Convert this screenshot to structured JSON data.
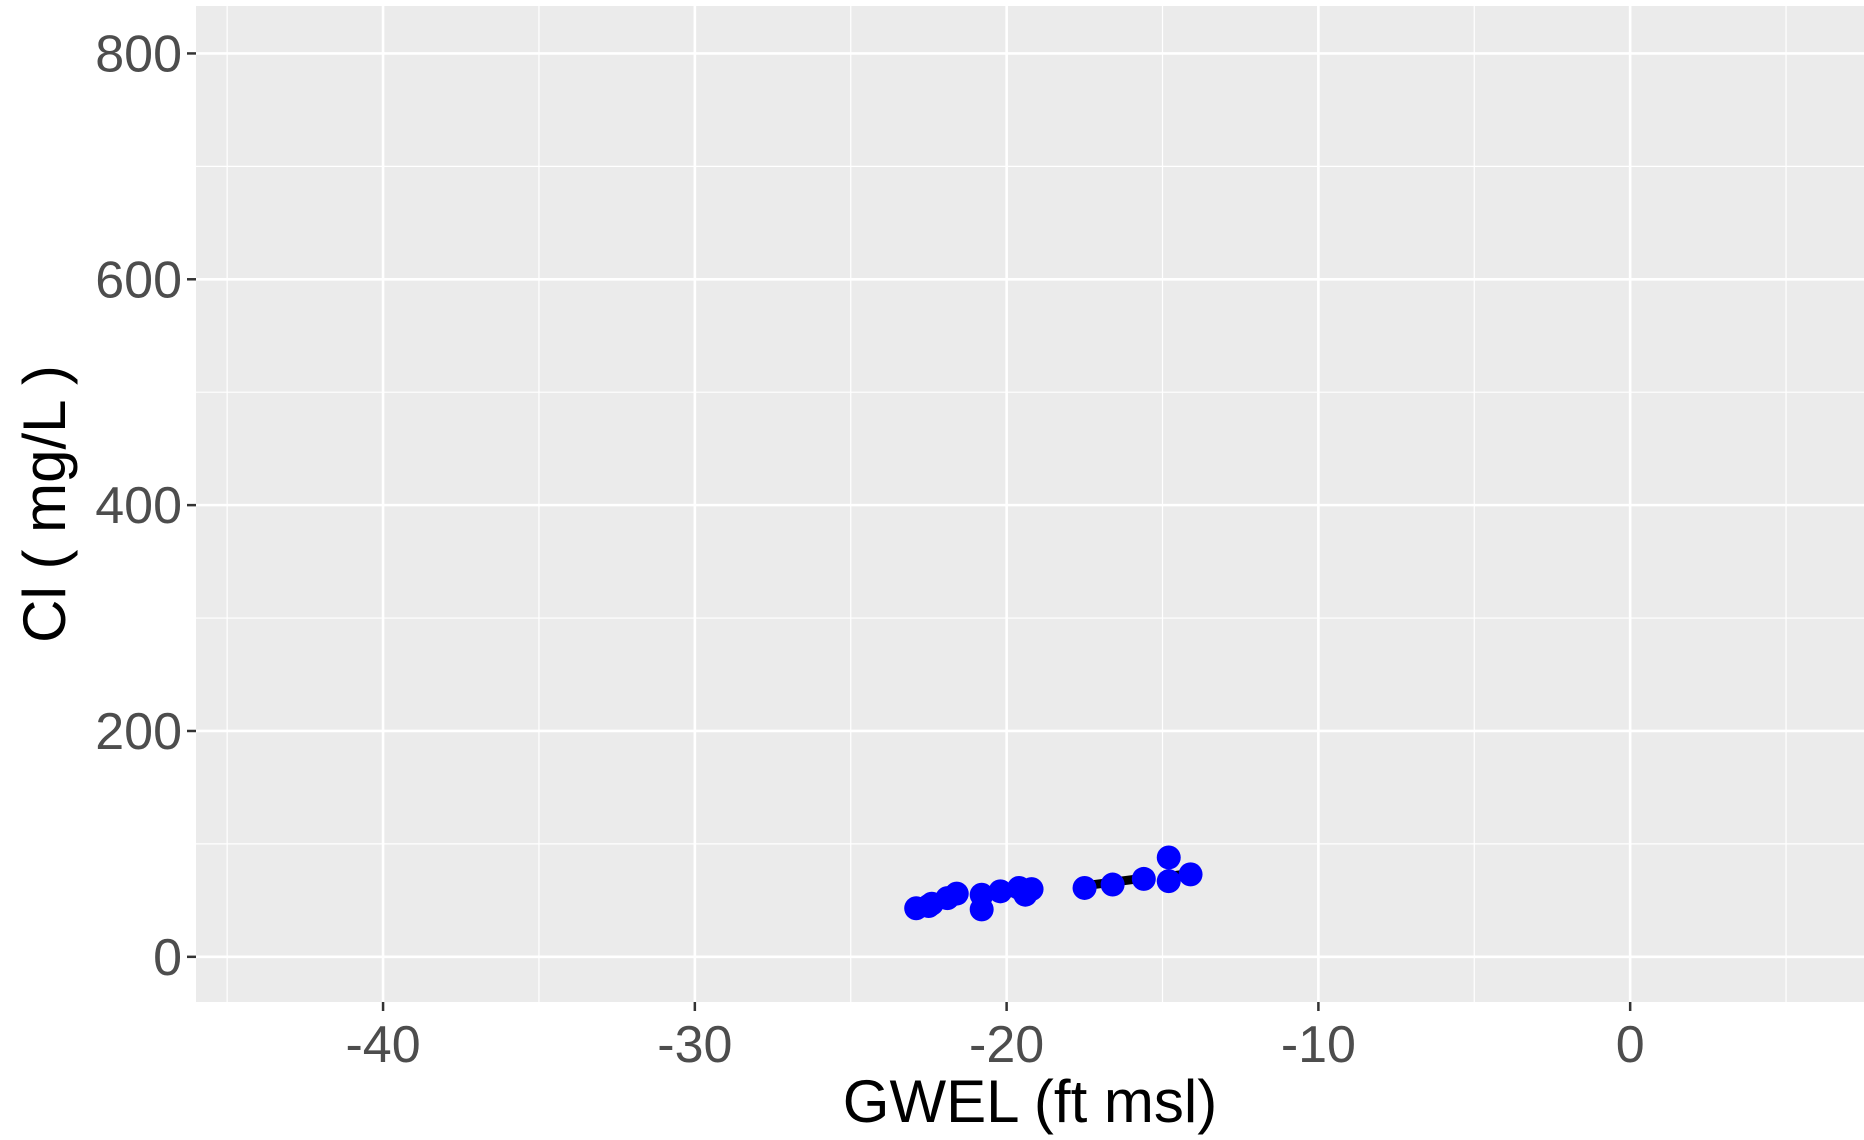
{
  "chart_data": {
    "type": "scatter",
    "title": "",
    "xlabel": "GWEL (ft msl)",
    "ylabel": "Cl  ( mg/L )",
    "xlim": [
      -46,
      7.5
    ],
    "ylim": [
      -40,
      842
    ],
    "x_ticks": [
      -40,
      -30,
      -20,
      -10,
      0
    ],
    "x_tick_labels": [
      "-40",
      "-30",
      "-20",
      "-10",
      "0"
    ],
    "x_minor_ticks": [
      -45,
      -35,
      -25,
      -15,
      -5,
      5
    ],
    "y_ticks": [
      0,
      200,
      400,
      600,
      800
    ],
    "y_tick_labels": [
      "0",
      "200",
      "400",
      "600",
      "800"
    ],
    "y_minor_ticks": [
      100,
      300,
      500,
      700
    ],
    "grid": true,
    "legend": "none",
    "colors": {
      "panel_background": "#ebebeb",
      "gridline": "#ffffff",
      "point": "#0000ff",
      "trend_line": "#000000",
      "tick_label": "#4d4d4d",
      "axis_title": "#000000"
    },
    "points": [
      {
        "x": -22.9,
        "y": 43
      },
      {
        "x": -22.5,
        "y": 45
      },
      {
        "x": -22.4,
        "y": 47
      },
      {
        "x": -21.9,
        "y": 52
      },
      {
        "x": -21.6,
        "y": 56
      },
      {
        "x": -20.8,
        "y": 42
      },
      {
        "x": -20.8,
        "y": 55
      },
      {
        "x": -20.2,
        "y": 58
      },
      {
        "x": -19.6,
        "y": 61
      },
      {
        "x": -19.4,
        "y": 55
      },
      {
        "x": -19.2,
        "y": 60
      },
      {
        "x": -17.5,
        "y": 61
      },
      {
        "x": -16.6,
        "y": 64
      },
      {
        "x": -15.6,
        "y": 69
      },
      {
        "x": -14.8,
        "y": 88
      },
      {
        "x": -14.8,
        "y": 67
      },
      {
        "x": -14.1,
        "y": 73
      }
    ],
    "trend_segments": [
      {
        "x": [
          -22.8,
          -21.8
        ],
        "y": [
          45,
          50
        ]
      },
      {
        "x": -20.3,
        "x2": -19.0,
        "y": 55,
        "y2": 60
      },
      {
        "x": [
          -17.2,
          -15.8
        ],
        "y": [
          64,
          69
        ]
      },
      {
        "x": [
          -14.6,
          -14.1
        ],
        "y": [
          72,
          74
        ]
      }
    ]
  }
}
